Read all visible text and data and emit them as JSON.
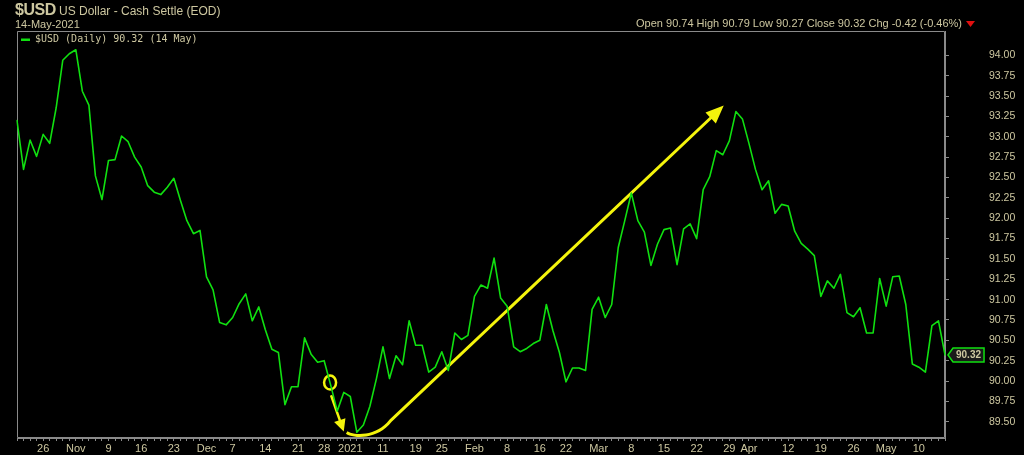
{
  "chart_data": {
    "type": "line",
    "title": "$USD US Dollar - Cash Settle (EOD)",
    "subtitle": "14-May-2021",
    "annotations": [
      "Open 90.74 High 90.79 Low 90.27 Close 90.32 Chg -0.42 (-0.46%)"
    ],
    "categories": [
      null,
      null,
      null,
      null,
      "26",
      null,
      null,
      null,
      null,
      "Nov",
      null,
      null,
      null,
      null,
      "9",
      null,
      null,
      null,
      null,
      "16",
      null,
      null,
      null,
      null,
      "23",
      null,
      null,
      null,
      null,
      "Dec",
      null,
      null,
      null,
      "7",
      null,
      null,
      null,
      null,
      "14",
      null,
      null,
      null,
      null,
      "21",
      null,
      null,
      null,
      "28",
      null,
      null,
      null,
      "2021",
      null,
      null,
      null,
      null,
      "11",
      null,
      null,
      null,
      null,
      "19",
      null,
      null,
      null,
      "25",
      null,
      null,
      null,
      null,
      "Feb",
      null,
      null,
      null,
      null,
      "8",
      null,
      null,
      null,
      null,
      "16",
      null,
      null,
      null,
      "22",
      null,
      null,
      null,
      null,
      "Mar",
      null,
      null,
      null,
      null,
      "8",
      null,
      null,
      null,
      null,
      "15",
      null,
      null,
      null,
      null,
      "22",
      null,
      null,
      null,
      null,
      "29",
      null,
      null,
      "Apr",
      null,
      null,
      null,
      null,
      null,
      "12",
      null,
      null,
      null,
      null,
      "19",
      null,
      null,
      null,
      null,
      "26",
      null,
      null,
      null,
      null,
      "May",
      null,
      null,
      null,
      null,
      "10",
      null,
      null,
      null,
      null
    ],
    "series": [
      {
        "name": "$USD (Daily) 90.32 (14 May)",
        "color": "#10e010",
        "values": [
          93.2,
          92.6,
          92.96,
          92.76,
          93.03,
          92.92,
          93.36,
          93.94,
          94.02,
          94.07,
          93.56,
          93.39,
          92.52,
          92.23,
          92.71,
          92.72,
          93.01,
          92.94,
          92.75,
          92.63,
          92.4,
          92.32,
          92.29,
          92.38,
          92.49,
          92.22,
          91.97,
          91.81,
          91.85,
          91.28,
          91.12,
          90.72,
          90.69,
          90.78,
          90.95,
          91.07,
          90.74,
          90.91,
          90.63,
          90.39,
          90.35,
          89.71,
          89.93,
          89.93,
          90.53,
          90.33,
          90.23,
          90.25,
          89.95,
          89.63,
          89.86,
          89.81,
          89.37,
          89.46,
          89.69,
          90.03,
          90.42,
          90.03,
          90.31,
          90.2,
          90.74,
          90.44,
          90.44,
          90.11,
          90.17,
          90.36,
          90.13,
          90.59,
          90.51,
          90.56,
          91.04,
          91.18,
          91.14,
          91.51,
          91.02,
          90.92,
          90.42,
          90.36,
          90.4,
          90.46,
          90.5,
          90.94,
          90.62,
          90.35,
          89.99,
          90.16,
          90.16,
          90.13,
          90.88,
          91.03,
          90.78,
          90.94,
          91.64,
          91.97,
          92.31,
          91.97,
          91.83,
          91.42,
          91.68,
          91.86,
          91.88,
          91.43,
          91.87,
          91.93,
          91.75,
          92.35,
          92.51,
          92.83,
          92.78,
          92.95,
          93.31,
          93.22,
          92.92,
          92.6,
          92.35,
          92.46,
          92.06,
          92.17,
          92.15,
          91.84,
          91.69,
          91.62,
          91.54,
          91.04,
          91.23,
          91.14,
          91.31,
          90.84,
          90.79,
          90.9,
          90.59,
          90.59,
          91.26,
          90.92,
          91.28,
          91.29,
          90.94,
          90.21,
          90.17,
          90.11,
          90.68,
          90.74,
          90.32
        ],
        "value_labels": [
          null,
          null,
          null,
          null,
          null,
          null,
          null,
          null,
          null,
          null,
          null,
          null,
          null,
          null,
          null,
          null,
          null,
          null,
          null,
          null,
          null,
          null,
          null,
          null,
          null,
          null,
          null,
          null,
          null,
          null,
          null,
          null,
          null,
          null,
          null,
          null,
          null,
          null,
          null,
          null,
          null,
          null,
          null,
          null,
          null,
          null,
          null,
          null,
          null,
          null,
          null,
          null,
          null,
          null,
          null,
          null,
          null,
          null,
          null,
          null,
          null,
          null,
          null,
          null,
          null,
          null,
          null,
          null,
          null,
          null,
          null,
          null,
          null,
          null,
          null,
          null,
          null,
          null,
          null,
          null,
          null,
          null,
          null,
          null,
          null,
          null,
          null,
          null,
          null,
          null,
          null,
          null,
          null,
          null,
          null,
          null,
          null,
          null,
          null,
          null,
          null,
          null,
          null,
          null,
          null,
          null,
          null,
          null,
          null,
          null,
          null,
          null,
          null,
          null,
          null,
          null,
          null,
          null,
          null,
          null,
          null,
          null,
          null,
          null,
          null,
          null,
          null,
          null,
          null,
          null,
          null,
          null,
          null,
          null,
          null,
          null,
          null,
          null,
          null,
          null,
          null,
          null,
          "90.32"
        ]
      }
    ],
    "ylim": [
      89.3,
      94.3
    ],
    "yticks": [
      {
        "value": 89.5,
        "label": "89.50"
      },
      89.75,
      {
        "value": 90,
        "label": "90.00"
      },
      90.25,
      {
        "value": 90.5,
        "label": "90.50"
      },
      90.75,
      {
        "value": 91,
        "label": "91.00"
      },
      91.25,
      {
        "value": 91.5,
        "label": "91.50"
      },
      91.75,
      {
        "value": 92,
        "label": "92.00"
      },
      92.25,
      {
        "value": 92.5,
        "label": "92.50"
      },
      92.75,
      {
        "value": 93,
        "label": "93.00"
      },
      93.25,
      {
        "value": 93.5,
        "label": "93.50"
      },
      93.75,
      {
        "value": 94,
        "label": "94.00"
      }
    ],
    "legend": "top left"
  }
}
